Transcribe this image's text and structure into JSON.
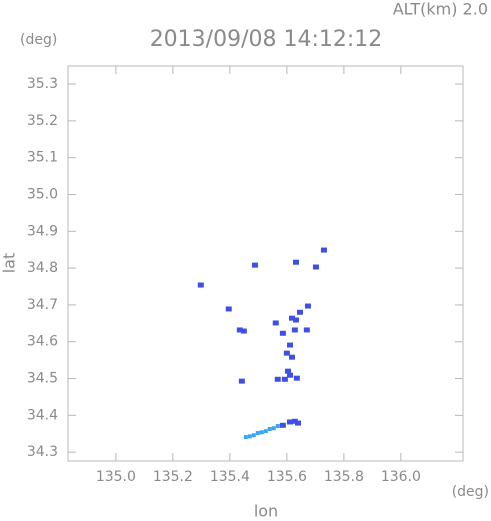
{
  "chart_data": {
    "type": "scatter",
    "title": "2013/09/08 14:12:12",
    "subtitle": "ALT(km) 2.0",
    "y_unit": "(deg)",
    "x_unit": "(deg)",
    "xlabel": "lon",
    "ylabel": "lat",
    "xlim": [
      134.832,
      136.218
    ],
    "ylim": [
      34.276,
      35.349
    ],
    "xticks": [
      {
        "value": 135,
        "label": "135.0"
      },
      135.2,
      135.4,
      135.6,
      135.8,
      {
        "value": 136,
        "label": "136.0"
      }
    ],
    "yticks": [
      34.3,
      34.4,
      34.5,
      34.6,
      34.7,
      34.8,
      34.9,
      {
        "value": 35,
        "label": "35.0"
      },
      35.1,
      35.2,
      35.3
    ],
    "series": [
      {
        "color": "#3f4fe6",
        "x": [
          135.298,
          135.488,
          135.632,
          135.702,
          135.73,
          135.396,
          135.435,
          135.449,
          135.442,
          135.674,
          135.618,
          135.632,
          135.586,
          135.628,
          135.67,
          135.611,
          135.6,
          135.618,
          135.604,
          135.611,
          135.568,
          135.593,
          135.635,
          135.561,
          135.646,
          135.586,
          135.611,
          135.628,
          135.639
        ],
        "y": [
          34.754,
          34.808,
          34.816,
          34.803,
          34.849,
          34.689,
          34.632,
          34.629,
          34.493,
          34.697,
          34.664,
          34.659,
          34.623,
          34.632,
          34.632,
          34.591,
          34.569,
          34.558,
          34.52,
          34.509,
          34.498,
          34.498,
          34.501,
          34.651,
          34.68,
          34.373,
          34.382,
          34.384,
          34.379
        ]
      },
      {
        "color": "#3aa6f0",
        "x": [
          135.456,
          135.47,
          135.484,
          135.498,
          135.512,
          135.526,
          135.54,
          135.554,
          135.568
        ],
        "y": [
          34.341,
          34.343,
          34.346,
          34.352,
          34.354,
          34.357,
          34.363,
          34.365,
          34.371
        ]
      }
    ]
  }
}
